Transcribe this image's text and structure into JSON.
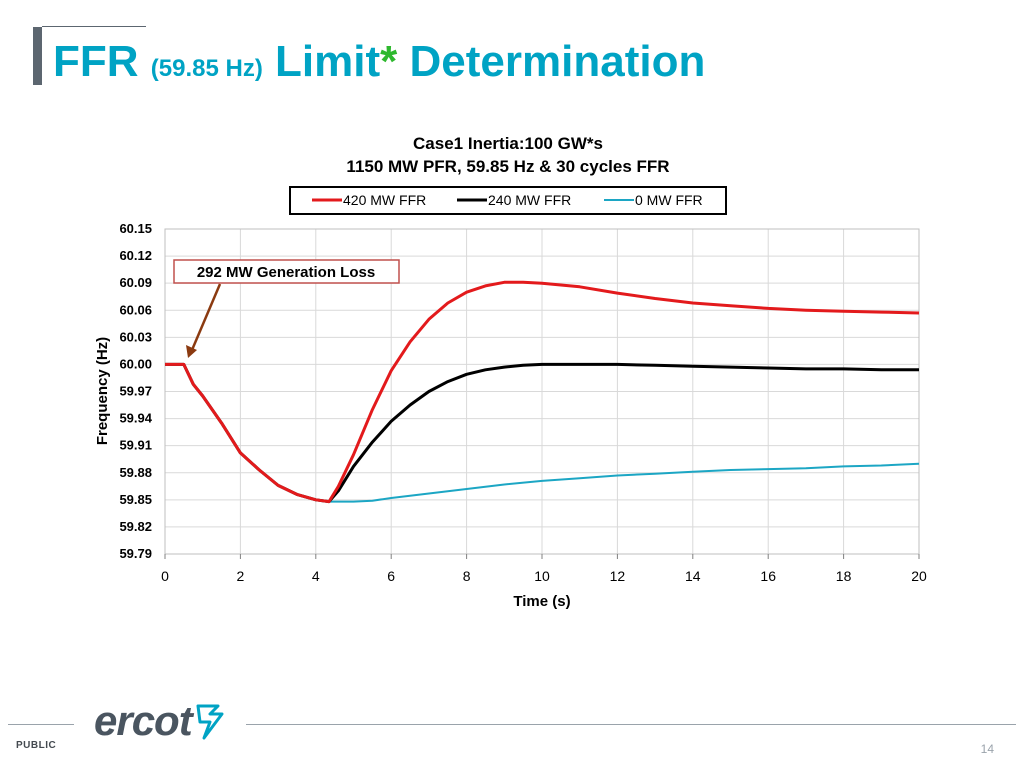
{
  "slide": {
    "title_main": "FFR",
    "title_paren": "(59.85 Hz)",
    "title_limit": "Limit",
    "title_star": "*",
    "title_rest": "Determination",
    "footer_label": "PUBLIC",
    "page_number": "14",
    "logo_text": "ercot",
    "colors": {
      "title": "#00a3c4",
      "star": "#2eb82e",
      "bar": "#5c6670"
    }
  },
  "chart_data": {
    "type": "line",
    "title": "Case1 Inertia:100 GW*s",
    "subtitle": "1150 MW PFR, 59.85 Hz & 30 cycles FFR",
    "xlabel": "Time (s)",
    "ylabel": "Frequency (Hz)",
    "xlim": [
      0,
      20
    ],
    "ylim": [
      59.79,
      60.15
    ],
    "xticks": [
      0,
      2,
      4,
      6,
      8,
      10,
      12,
      14,
      16,
      18,
      20
    ],
    "yticks": [
      "59.79",
      "59.82",
      "59.85",
      "59.88",
      "59.91",
      "59.94",
      "59.97",
      "60.00",
      "60.03",
      "60.06",
      "60.09",
      "60.12",
      "60.15"
    ],
    "xgrid": true,
    "ygrid": true,
    "legend_position": "top",
    "annotation": {
      "text": "292 MW Generation Loss",
      "points_to": [
        0.6,
        60.0
      ]
    },
    "series": [
      {
        "name": "420 MW FFR",
        "color": "#e31a1c",
        "x": [
          0,
          0.5,
          0.75,
          1,
          1.5,
          2,
          2.5,
          3,
          3.5,
          4,
          4.35,
          4.6,
          5,
          5.5,
          6,
          6.5,
          7,
          7.5,
          8,
          8.5,
          9,
          9.5,
          10,
          11,
          12,
          13,
          14,
          15,
          16,
          17,
          18,
          19,
          20
        ],
        "y": [
          60.0,
          60.0,
          59.978,
          59.965,
          59.935,
          59.902,
          59.883,
          59.866,
          59.856,
          59.85,
          59.848,
          59.865,
          59.9,
          59.95,
          59.993,
          60.025,
          60.05,
          60.068,
          60.08,
          60.087,
          60.091,
          60.091,
          60.09,
          60.086,
          60.079,
          60.073,
          60.068,
          60.065,
          60.062,
          60.06,
          60.059,
          60.058,
          60.057
        ]
      },
      {
        "name": "240 MW FFR",
        "color": "#000000",
        "x": [
          0,
          0.5,
          0.75,
          1,
          1.5,
          2,
          2.5,
          3,
          3.5,
          4,
          4.35,
          4.6,
          5,
          5.5,
          6,
          6.5,
          7,
          7.5,
          8,
          8.5,
          9,
          9.5,
          10,
          11,
          12,
          13,
          14,
          15,
          16,
          17,
          18,
          19,
          20
        ],
        "y": [
          60.0,
          60.0,
          59.978,
          59.965,
          59.935,
          59.902,
          59.883,
          59.866,
          59.856,
          59.85,
          59.848,
          59.86,
          59.887,
          59.914,
          59.937,
          59.955,
          59.97,
          59.981,
          59.989,
          59.994,
          59.997,
          59.999,
          60.0,
          60.0,
          60.0,
          59.999,
          59.998,
          59.997,
          59.996,
          59.995,
          59.995,
          59.994,
          59.994
        ]
      },
      {
        "name": "0 MW FFR",
        "color": "#1ca6c4",
        "x": [
          0,
          0.5,
          0.75,
          1,
          1.5,
          2,
          2.5,
          3,
          3.5,
          4,
          4.35,
          5,
          5.5,
          6,
          7,
          8,
          9,
          10,
          11,
          12,
          13,
          14,
          15,
          16,
          17,
          18,
          19,
          20
        ],
        "y": [
          60.0,
          60.0,
          59.978,
          59.965,
          59.935,
          59.902,
          59.883,
          59.866,
          59.856,
          59.85,
          59.848,
          59.848,
          59.849,
          59.852,
          59.857,
          59.862,
          59.867,
          59.871,
          59.874,
          59.877,
          59.879,
          59.881,
          59.883,
          59.884,
          59.885,
          59.887,
          59.888,
          59.89
        ]
      }
    ]
  }
}
